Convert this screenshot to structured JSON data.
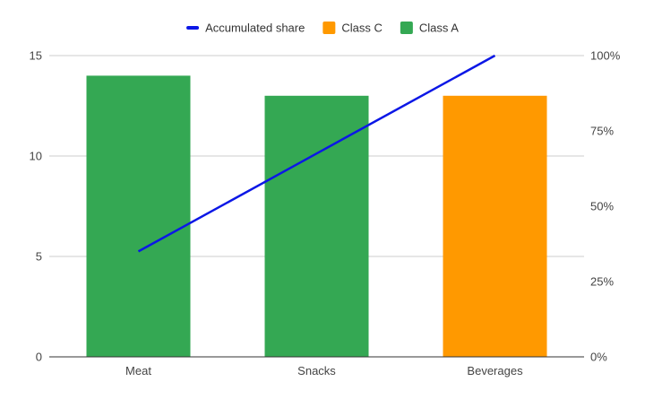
{
  "chart_data": {
    "type": "bar",
    "categories": [
      "Meat",
      "Snacks",
      "Beverages"
    ],
    "series": [
      {
        "name": "Class A",
        "type": "bar",
        "values": [
          14,
          13,
          null
        ],
        "color": "#34a853",
        "axis": "left"
      },
      {
        "name": "Class C",
        "type": "bar",
        "values": [
          null,
          null,
          13
        ],
        "color": "#ff9900",
        "axis": "left"
      },
      {
        "name": "Accumulated share",
        "type": "line",
        "values": [
          0.35,
          0.675,
          1.0
        ],
        "color": "#0b17e6",
        "axis": "right"
      }
    ],
    "legend": {
      "position": "top",
      "items": [
        {
          "name": "Accumulated share",
          "color": "#0b17e6",
          "marker": "line"
        },
        {
          "name": "Class C",
          "color": "#ff9900",
          "marker": "square"
        },
        {
          "name": "Class A",
          "color": "#34a853",
          "marker": "square"
        }
      ]
    },
    "y_left": {
      "ticks": [
        "0",
        "5",
        "10",
        "15"
      ],
      "ylim": [
        0,
        15
      ]
    },
    "y_right": {
      "ticks": [
        "0%",
        "25%",
        "50%",
        "75%",
        "100%"
      ],
      "ylim": [
        0,
        1
      ]
    },
    "grid": true
  }
}
